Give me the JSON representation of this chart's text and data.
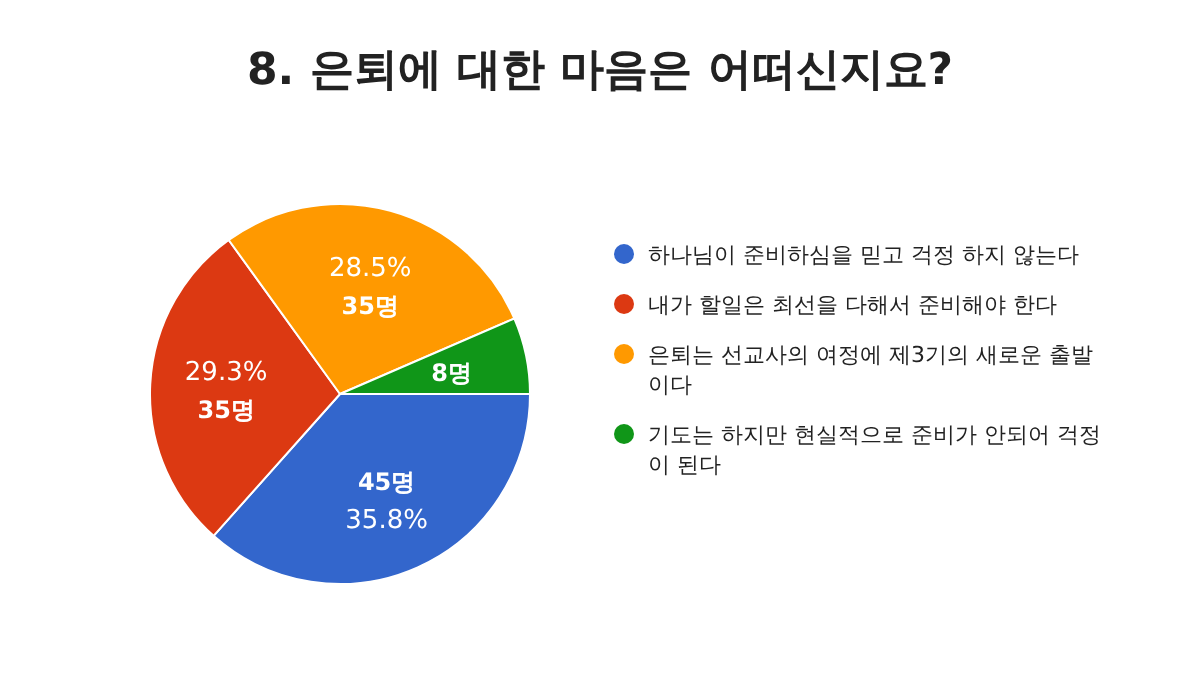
{
  "chart_data": {
    "type": "pie",
    "title": "8. 은퇴에 대한 마음은 어떠신지요?",
    "categories": [
      "하나님이 준비하심을 믿고 걱정 하지 않는다",
      "내가 할일은 최선을 다해서 준비해야 한다",
      "은퇴는 선교사의 여정에 제3기의 새로운 출발이다",
      "기도는 하지만 현실적으로 준비가 안되어 걱정이 된다"
    ],
    "values": [
      45,
      35,
      35,
      8
    ],
    "value_labels": [
      "45명",
      "35명",
      "35명",
      "8명"
    ],
    "colors": [
      "#3366cc",
      "#dc3912",
      "#ff9900",
      "#109618"
    ],
    "legend": "right",
    "annotations": [
      {
        "text": "35.8%",
        "x": "하나님이 준비하심을 믿고 걱정 하지 않는다"
      },
      {
        "text": "29.3%",
        "x": "내가 할일은 최선을 다해서 준비해야 한다"
      },
      {
        "text": "28.5%",
        "x": "은퇴는 선교사의 여정에 제3기의 새로운 출발이다"
      }
    ]
  }
}
